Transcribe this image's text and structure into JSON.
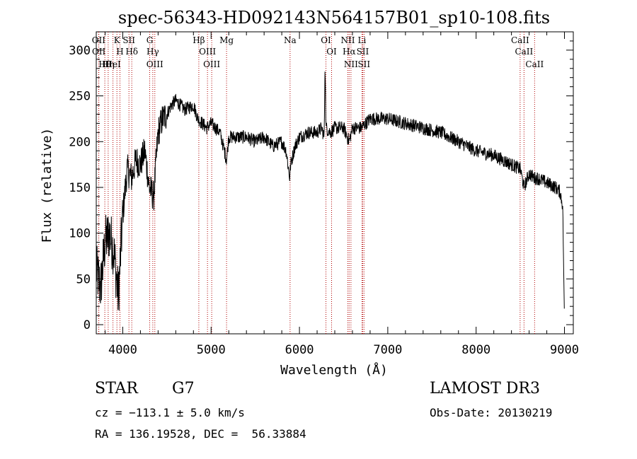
{
  "chart_data": {
    "type": "line",
    "title": "spec-56343-HD092143N564157B01_sp10-108.fits",
    "xlabel": "Wavelength (Å)",
    "ylabel": "Flux (relative)",
    "xlim": [
      3700,
      9100
    ],
    "ylim": [
      -10,
      320
    ],
    "xticks": [
      4000,
      5000,
      6000,
      7000,
      8000,
      9000
    ],
    "yticks": [
      0,
      50,
      100,
      150,
      200,
      250,
      300
    ],
    "grid": false,
    "series": [
      {
        "color": "#000000",
        "x": [
          3700,
          3750,
          3800,
          3850,
          3900,
          3950,
          4000,
          4050,
          4100,
          4150,
          4200,
          4250,
          4300,
          4350,
          4400,
          4450,
          4500,
          4550,
          4600,
          4700,
          4800,
          4850,
          4900,
          4950,
          5000,
          5100,
          5175,
          5200,
          5300,
          5400,
          5500,
          5600,
          5700,
          5800,
          5850,
          5890,
          5900,
          5950,
          6000,
          6100,
          6200,
          6250,
          6280,
          6290,
          6300,
          6350,
          6400,
          6500,
          6563,
          6600,
          6700,
          6800,
          6900,
          7000,
          7200,
          7400,
          7600,
          7800,
          8000,
          8200,
          8400,
          8500,
          8542,
          8600,
          8662,
          8700,
          8800,
          8900,
          8950,
          8980,
          9000
        ],
        "values": [
          60,
          40,
          90,
          100,
          80,
          30,
          120,
          170,
          160,
          180,
          175,
          190,
          150,
          140,
          210,
          225,
          230,
          240,
          245,
          235,
          240,
          225,
          220,
          215,
          220,
          210,
          180,
          205,
          205,
          205,
          200,
          205,
          195,
          200,
          190,
          160,
          175,
          195,
          205,
          210,
          210,
          215,
          205,
          290,
          215,
          210,
          215,
          215,
          200,
          215,
          215,
          225,
          225,
          225,
          220,
          215,
          210,
          200,
          190,
          185,
          175,
          170,
          150,
          165,
          160,
          160,
          155,
          150,
          145,
          130,
          5
        ]
      }
    ],
    "lines": [
      {
        "label": "Hθ",
        "x": 3797
      },
      {
        "label": "OII",
        "x": 3727
      },
      {
        "label": "OII",
        "x": 3729
      },
      {
        "label": "K",
        "x": 3934
      },
      {
        "label": "HeI",
        "x": 3889
      },
      {
        "label": "Hη",
        "x": 3835
      },
      {
        "label": "H",
        "x": 3968
      },
      {
        "label": "Hδ",
        "x": 4102
      },
      {
        "label": "SII",
        "x": 4070
      },
      {
        "label": "OIII",
        "x": 4363
      },
      {
        "label": "Hγ",
        "x": 4340
      },
      {
        "label": "G",
        "x": 4305
      },
      {
        "label": "Hβ",
        "x": 4861
      },
      {
        "label": "OIII",
        "x": 5007
      },
      {
        "label": "OIII",
        "x": 4959
      },
      {
        "label": "Mg",
        "x": 5175
      },
      {
        "label": "Na",
        "x": 5894
      },
      {
        "label": "OI",
        "x": 6300
      },
      {
        "label": "OI",
        "x": 6364
      },
      {
        "label": "Hα",
        "x": 6563
      },
      {
        "label": "NII",
        "x": 6548
      },
      {
        "label": "NII",
        "x": 6583
      },
      {
        "label": "SII",
        "x": 6716
      },
      {
        "label": "SII",
        "x": 6731
      },
      {
        "label": "Li",
        "x": 6708
      },
      {
        "label": "CaII",
        "x": 8542
      },
      {
        "label": "CaII",
        "x": 8498
      },
      {
        "label": "CaII",
        "x": 8662
      }
    ]
  },
  "footer": {
    "class_label": "STAR",
    "subclass": "G7",
    "survey": "LAMOST DR3",
    "cz": "cz = −113.1 ± 5.0 km/s",
    "obs_date": "Obs-Date: 20130219",
    "coords": "RA = 136.19528, DEC =  56.33884"
  }
}
